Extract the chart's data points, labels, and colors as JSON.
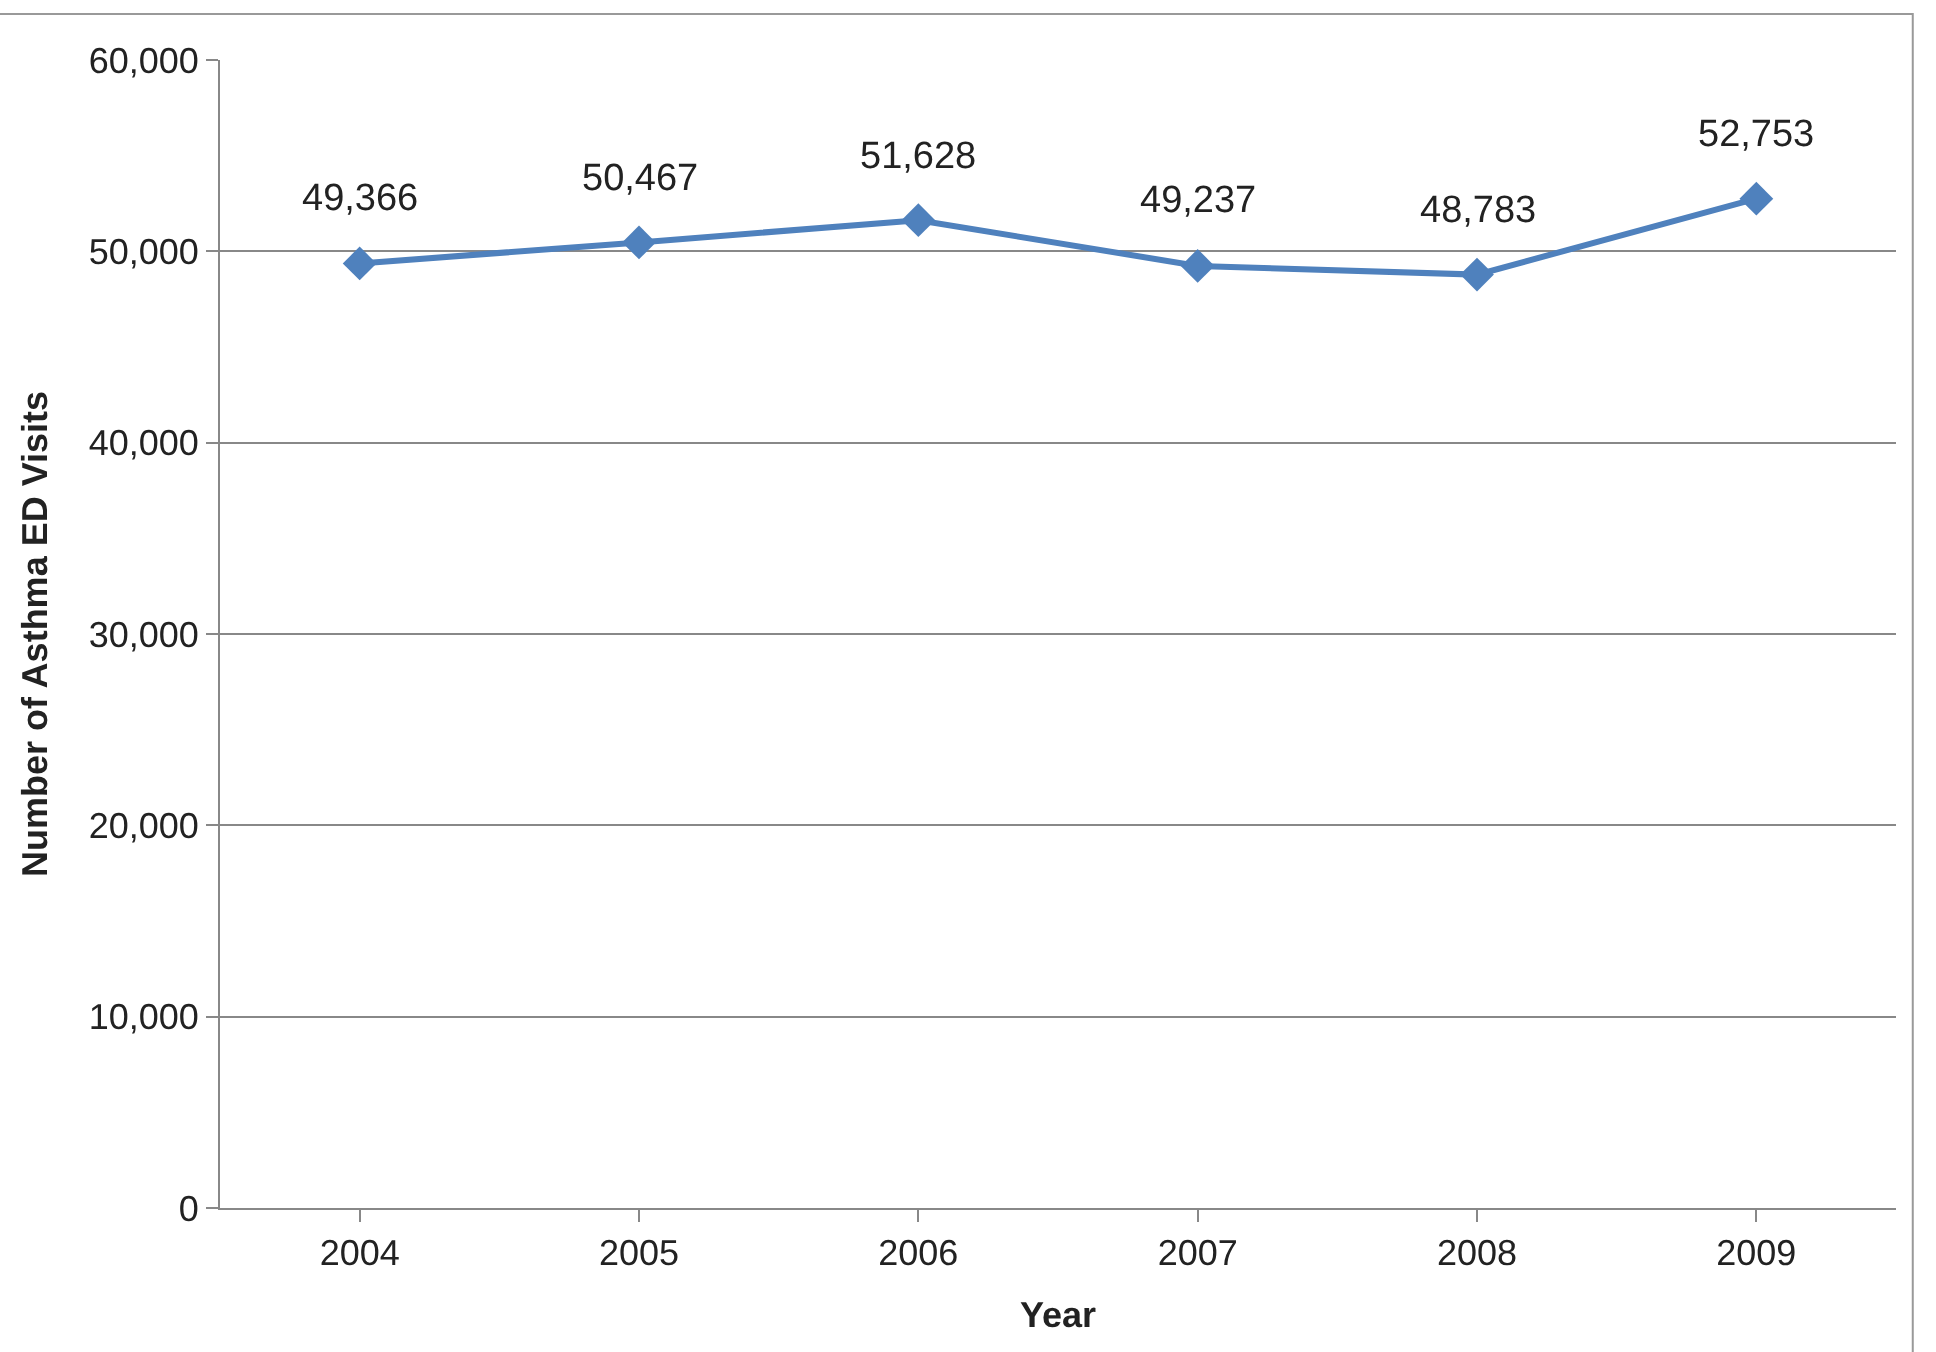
{
  "chart_data": {
    "type": "line",
    "xlabel": "Year",
    "ylabel": "Number of Asthma ED Visits",
    "categories": [
      "2004",
      "2005",
      "2006",
      "2007",
      "2008",
      "2009"
    ],
    "series": [
      {
        "color": "#4f81bd",
        "values": [
          49366,
          50467,
          51628,
          49237,
          48783,
          52753
        ],
        "value_labels": [
          "49,366",
          "50,467",
          "51,628",
          "49,237",
          "48,783",
          "52,753"
        ]
      }
    ],
    "ylim": [
      0,
      60000
    ],
    "yticks": [
      0,
      {
        "value": 10000,
        "label": "10,000"
      },
      {
        "value": 20000,
        "label": "20,000"
      },
      {
        "value": 30000,
        "label": "30,000"
      },
      {
        "value": 40000,
        "label": "40,000"
      },
      {
        "value": 50000,
        "label": "50,000"
      },
      {
        "value": 60000,
        "label": "60,000"
      }
    ],
    "grid": "y",
    "marker": "diamond",
    "line_style": "solid"
  }
}
